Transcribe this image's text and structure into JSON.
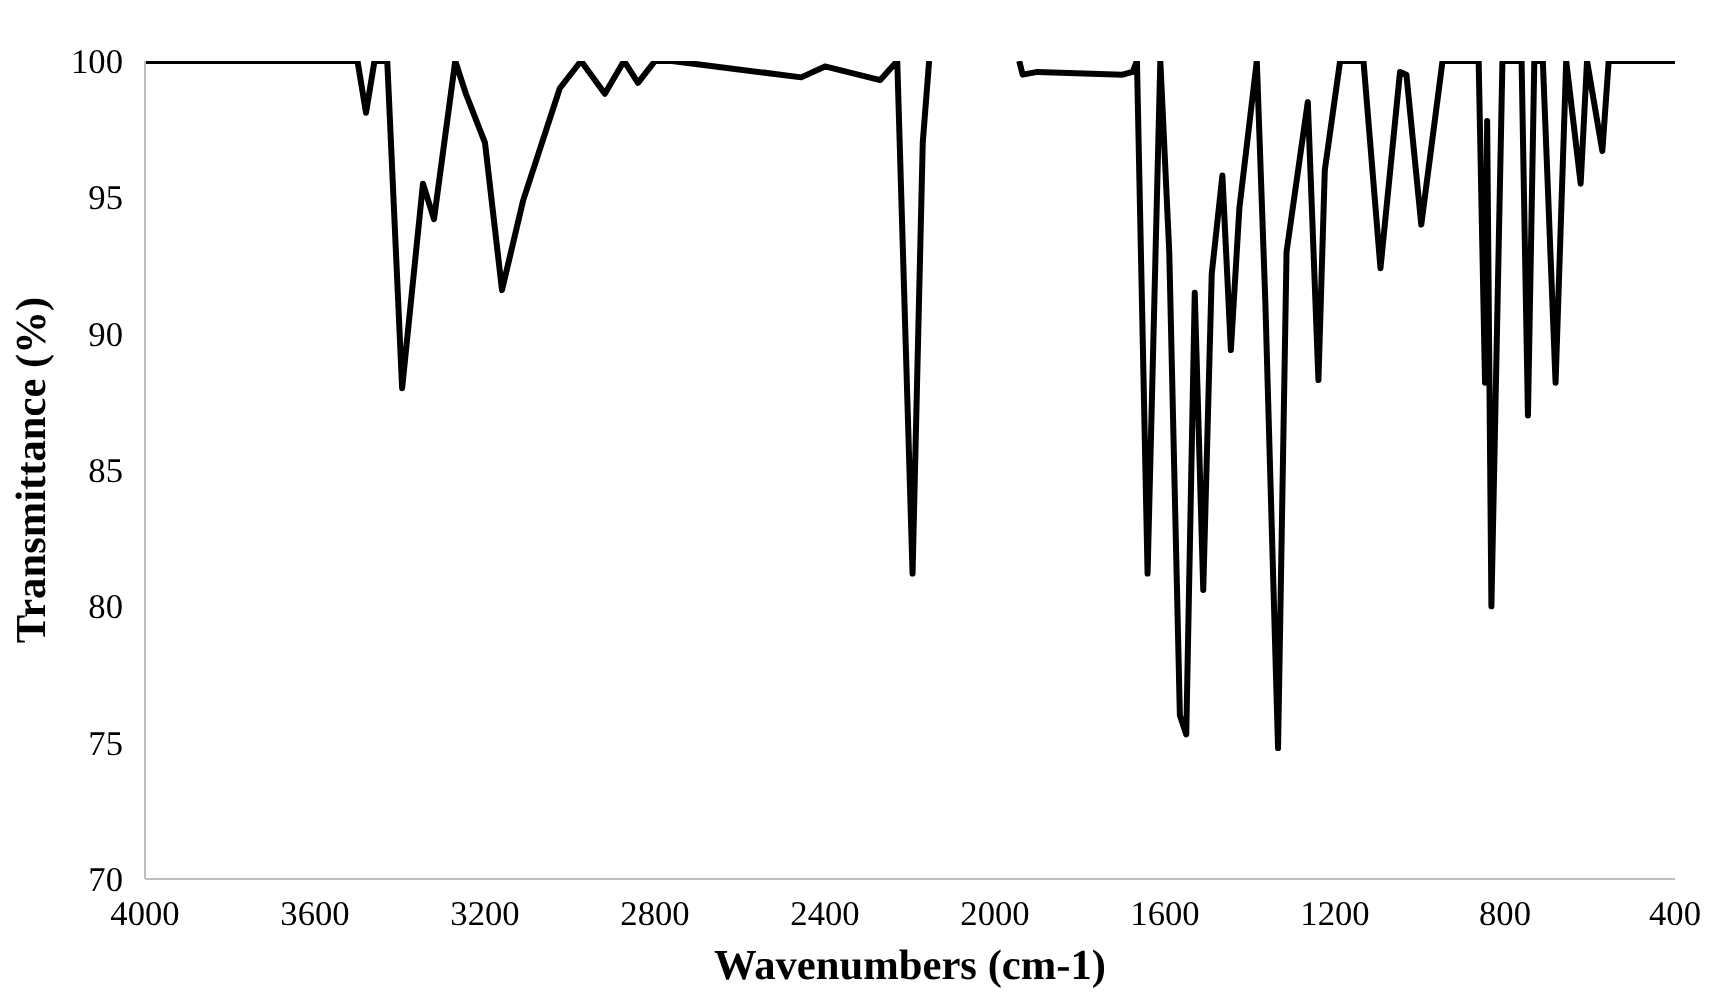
{
  "chart_data": {
    "type": "line",
    "xlabel": "Wavenumbers (cm-1)",
    "ylabel": "Transmittance (%)",
    "xlim": [
      4000,
      400
    ],
    "ylim": [
      70,
      100
    ],
    "xticks": [
      4000,
      3600,
      3200,
      2800,
      2400,
      2000,
      1600,
      1200,
      800,
      400
    ],
    "yticks": [
      70,
      75,
      80,
      85,
      90,
      95,
      100
    ],
    "grid": false,
    "line_style": "solid",
    "series": [
      {
        "color": "#000000",
        "x": [
          4000,
          3700,
          3500,
          3480,
          3460,
          3430,
          3395,
          3346,
          3320,
          3270,
          3245,
          3200,
          3160,
          3110,
          3024,
          2974,
          2918,
          2873,
          2840,
          2800,
          2760,
          2456,
          2400,
          2270,
          2230,
          2194,
          2170,
          2155,
          2100,
          1943,
          1935,
          1900,
          1700,
          1676,
          1666,
          1641,
          1611,
          1590,
          1565,
          1550,
          1530,
          1510,
          1490,
          1465,
          1445,
          1425,
          1384,
          1364,
          1334,
          1314,
          1264,
          1239,
          1224,
          1188,
          1133,
          1093,
          1047,
          1032,
          997,
          947,
          862,
          847,
          842,
          832,
          806,
          761,
          746,
          731,
          711,
          681,
          656,
          622,
          607,
          571,
          556,
          400
        ],
        "values": [
          100,
          100,
          100,
          98.1,
          100,
          100,
          88,
          95.5,
          94.2,
          100,
          98.8,
          97,
          91.6,
          94.9,
          99,
          100,
          98.8,
          100,
          99.2,
          100,
          100,
          99.4,
          99.8,
          99.3,
          100,
          81.2,
          97,
          100,
          null,
          100,
          99.5,
          99.6,
          99.5,
          99.6,
          100,
          81.2,
          100,
          93,
          76,
          75.3,
          91.5,
          80.6,
          92.2,
          95.8,
          89.4,
          94.6,
          100,
          91.2,
          74.8,
          93,
          98.5,
          88.3,
          96,
          100,
          100,
          92.4,
          99.6,
          99.5,
          94,
          100,
          100,
          88.2,
          97.8,
          80,
          100,
          100,
          87,
          100,
          100,
          88.2,
          100,
          95.5,
          100,
          96.7,
          100,
          100
        ]
      }
    ]
  }
}
